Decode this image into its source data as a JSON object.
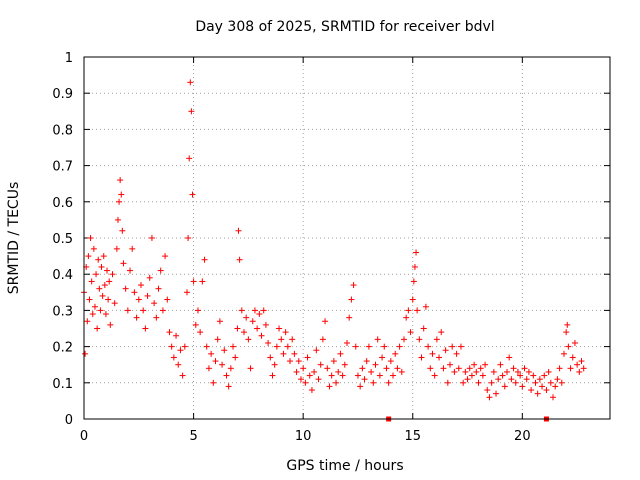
{
  "chart_data": {
    "type": "scatter",
    "title": "Day 308 of 2025, SRMTID for receiver bdvl",
    "xlabel": "GPS time / hours",
    "ylabel": "SRMTID / TECUs",
    "xlim": [
      0,
      24
    ],
    "ylim": [
      0,
      1
    ],
    "xticks": [
      0,
      5,
      10,
      15,
      20
    ],
    "yticks": [
      0,
      0.1,
      0.2,
      0.3,
      0.4,
      0.5,
      0.6,
      0.7,
      0.8,
      0.9,
      1
    ],
    "xtick_labels": [
      "0",
      "5",
      "10",
      "15",
      "20"
    ],
    "ytick_labels": [
      "0",
      "0.1",
      "0.2",
      "0.3",
      "0.4",
      "0.5",
      "0.6",
      "0.7",
      "0.8",
      "0.9",
      "1"
    ],
    "grid": true,
    "marker": "plus",
    "series": [
      {
        "name": "SRMTID",
        "color": "#ff0000",
        "points": [
          [
            0.0,
            0.35
          ],
          [
            0.05,
            0.18
          ],
          [
            0.1,
            0.42
          ],
          [
            0.15,
            0.27
          ],
          [
            0.2,
            0.45
          ],
          [
            0.25,
            0.33
          ],
          [
            0.3,
            0.5
          ],
          [
            0.35,
            0.38
          ],
          [
            0.4,
            0.29
          ],
          [
            0.45,
            0.47
          ],
          [
            0.5,
            0.31
          ],
          [
            0.55,
            0.4
          ],
          [
            0.6,
            0.25
          ],
          [
            0.65,
            0.44
          ],
          [
            0.7,
            0.36
          ],
          [
            0.75,
            0.3
          ],
          [
            0.8,
            0.42
          ],
          [
            0.85,
            0.34
          ],
          [
            0.9,
            0.45
          ],
          [
            0.95,
            0.37
          ],
          [
            1.0,
            0.29
          ],
          [
            1.05,
            0.41
          ],
          [
            1.1,
            0.33
          ],
          [
            1.15,
            0.38
          ],
          [
            1.2,
            0.26
          ],
          [
            1.3,
            0.4
          ],
          [
            1.4,
            0.32
          ],
          [
            1.5,
            0.47
          ],
          [
            1.55,
            0.55
          ],
          [
            1.6,
            0.6
          ],
          [
            1.65,
            0.66
          ],
          [
            1.7,
            0.62
          ],
          [
            1.75,
            0.52
          ],
          [
            1.8,
            0.43
          ],
          [
            1.9,
            0.36
          ],
          [
            2.0,
            0.3
          ],
          [
            2.1,
            0.41
          ],
          [
            2.2,
            0.47
          ],
          [
            2.3,
            0.35
          ],
          [
            2.4,
            0.28
          ],
          [
            2.5,
            0.33
          ],
          [
            2.6,
            0.37
          ],
          [
            2.7,
            0.3
          ],
          [
            2.8,
            0.25
          ],
          [
            2.9,
            0.34
          ],
          [
            3.0,
            0.39
          ],
          [
            3.1,
            0.5
          ],
          [
            3.2,
            0.32
          ],
          [
            3.3,
            0.28
          ],
          [
            3.4,
            0.36
          ],
          [
            3.5,
            0.41
          ],
          [
            3.6,
            0.3
          ],
          [
            3.7,
            0.45
          ],
          [
            3.8,
            0.33
          ],
          [
            3.9,
            0.24
          ],
          [
            4.0,
            0.2
          ],
          [
            4.1,
            0.17
          ],
          [
            4.2,
            0.23
          ],
          [
            4.3,
            0.15
          ],
          [
            4.4,
            0.19
          ],
          [
            4.5,
            0.12
          ],
          [
            4.6,
            0.2
          ],
          [
            4.7,
            0.35
          ],
          [
            4.75,
            0.5
          ],
          [
            4.8,
            0.72
          ],
          [
            4.85,
            0.93
          ],
          [
            4.9,
            0.85
          ],
          [
            4.95,
            0.62
          ],
          [
            5.0,
            0.38
          ],
          [
            5.1,
            0.26
          ],
          [
            5.2,
            0.3
          ],
          [
            5.3,
            0.24
          ],
          [
            5.4,
            0.38
          ],
          [
            5.5,
            0.44
          ],
          [
            5.6,
            0.2
          ],
          [
            5.7,
            0.14
          ],
          [
            5.8,
            0.18
          ],
          [
            5.9,
            0.1
          ],
          [
            6.0,
            0.16
          ],
          [
            6.1,
            0.22
          ],
          [
            6.2,
            0.27
          ],
          [
            6.3,
            0.15
          ],
          [
            6.4,
            0.19
          ],
          [
            6.5,
            0.12
          ],
          [
            6.6,
            0.09
          ],
          [
            6.7,
            0.14
          ],
          [
            6.8,
            0.2
          ],
          [
            6.9,
            0.17
          ],
          [
            7.0,
            0.25
          ],
          [
            7.05,
            0.52
          ],
          [
            7.1,
            0.44
          ],
          [
            7.2,
            0.3
          ],
          [
            7.3,
            0.24
          ],
          [
            7.4,
            0.28
          ],
          [
            7.5,
            0.22
          ],
          [
            7.6,
            0.14
          ],
          [
            7.7,
            0.27
          ],
          [
            7.8,
            0.3
          ],
          [
            7.9,
            0.25
          ],
          [
            8.0,
            0.29
          ],
          [
            8.1,
            0.23
          ],
          [
            8.2,
            0.3
          ],
          [
            8.3,
            0.26
          ],
          [
            8.4,
            0.21
          ],
          [
            8.5,
            0.17
          ],
          [
            8.6,
            0.12
          ],
          [
            8.7,
            0.15
          ],
          [
            8.8,
            0.2
          ],
          [
            8.9,
            0.25
          ],
          [
            9.0,
            0.22
          ],
          [
            9.1,
            0.18
          ],
          [
            9.2,
            0.24
          ],
          [
            9.3,
            0.2
          ],
          [
            9.4,
            0.16
          ],
          [
            9.5,
            0.22
          ],
          [
            9.6,
            0.18
          ],
          [
            9.7,
            0.13
          ],
          [
            9.8,
            0.16
          ],
          [
            9.9,
            0.11
          ],
          [
            10.0,
            0.14
          ],
          [
            10.1,
            0.1
          ],
          [
            10.2,
            0.17
          ],
          [
            10.3,
            0.12
          ],
          [
            10.4,
            0.08
          ],
          [
            10.5,
            0.13
          ],
          [
            10.6,
            0.19
          ],
          [
            10.7,
            0.11
          ],
          [
            10.8,
            0.15
          ],
          [
            10.9,
            0.22
          ],
          [
            11.0,
            0.27
          ],
          [
            11.1,
            0.14
          ],
          [
            11.2,
            0.09
          ],
          [
            11.3,
            0.12
          ],
          [
            11.4,
            0.16
          ],
          [
            11.5,
            0.1
          ],
          [
            11.6,
            0.13
          ],
          [
            11.7,
            0.18
          ],
          [
            11.8,
            0.12
          ],
          [
            11.9,
            0.15
          ],
          [
            12.0,
            0.21
          ],
          [
            12.1,
            0.28
          ],
          [
            12.2,
            0.33
          ],
          [
            12.3,
            0.37
          ],
          [
            12.4,
            0.2
          ],
          [
            12.5,
            0.12
          ],
          [
            12.6,
            0.09
          ],
          [
            12.7,
            0.14
          ],
          [
            12.8,
            0.11
          ],
          [
            12.9,
            0.16
          ],
          [
            13.0,
            0.2
          ],
          [
            13.1,
            0.13
          ],
          [
            13.2,
            0.1
          ],
          [
            13.3,
            0.15
          ],
          [
            13.4,
            0.22
          ],
          [
            13.5,
            0.12
          ],
          [
            13.6,
            0.17
          ],
          [
            13.7,
            0.2
          ],
          [
            13.8,
            0.14
          ],
          [
            13.9,
            0.1
          ],
          [
            14.0,
            0.16
          ],
          [
            14.1,
            0.12
          ],
          [
            14.2,
            0.18
          ],
          [
            14.3,
            0.14
          ],
          [
            14.4,
            0.2
          ],
          [
            14.5,
            0.13
          ],
          [
            14.6,
            0.22
          ],
          [
            14.7,
            0.28
          ],
          [
            14.8,
            0.3
          ],
          [
            14.9,
            0.24
          ],
          [
            15.0,
            0.33
          ],
          [
            15.05,
            0.38
          ],
          [
            15.1,
            0.42
          ],
          [
            15.15,
            0.46
          ],
          [
            15.2,
            0.3
          ],
          [
            15.3,
            0.22
          ],
          [
            15.4,
            0.17
          ],
          [
            15.5,
            0.25
          ],
          [
            15.6,
            0.31
          ],
          [
            15.7,
            0.2
          ],
          [
            15.8,
            0.14
          ],
          [
            15.9,
            0.18
          ],
          [
            16.0,
            0.12
          ],
          [
            16.1,
            0.22
          ],
          [
            16.2,
            0.17
          ],
          [
            16.3,
            0.24
          ],
          [
            16.4,
            0.14
          ],
          [
            16.5,
            0.19
          ],
          [
            16.6,
            0.1
          ],
          [
            16.7,
            0.15
          ],
          [
            16.8,
            0.2
          ],
          [
            16.9,
            0.13
          ],
          [
            17.0,
            0.18
          ],
          [
            17.1,
            0.14
          ],
          [
            17.2,
            0.2
          ],
          [
            17.3,
            0.1
          ],
          [
            17.4,
            0.13
          ],
          [
            17.5,
            0.11
          ],
          [
            17.6,
            0.14
          ],
          [
            17.7,
            0.12
          ],
          [
            17.8,
            0.15
          ],
          [
            17.9,
            0.13
          ],
          [
            18.0,
            0.1
          ],
          [
            18.1,
            0.14
          ],
          [
            18.2,
            0.12
          ],
          [
            18.3,
            0.15
          ],
          [
            18.4,
            0.08
          ],
          [
            18.5,
            0.06
          ],
          [
            18.6,
            0.1
          ],
          [
            18.7,
            0.13
          ],
          [
            18.8,
            0.07
          ],
          [
            18.9,
            0.11
          ],
          [
            19.0,
            0.15
          ],
          [
            19.1,
            0.12
          ],
          [
            19.2,
            0.09
          ],
          [
            19.3,
            0.13
          ],
          [
            19.4,
            0.17
          ],
          [
            19.5,
            0.11
          ],
          [
            19.6,
            0.14
          ],
          [
            19.7,
            0.1
          ],
          [
            19.8,
            0.13
          ],
          [
            19.9,
            0.12
          ],
          [
            20.0,
            0.09
          ],
          [
            20.1,
            0.14
          ],
          [
            20.2,
            0.11
          ],
          [
            20.3,
            0.13
          ],
          [
            20.4,
            0.08
          ],
          [
            20.5,
            0.12
          ],
          [
            20.6,
            0.1
          ],
          [
            20.7,
            0.07
          ],
          [
            20.8,
            0.11
          ],
          [
            20.9,
            0.09
          ],
          [
            21.0,
            0.12
          ],
          [
            21.1,
            0.08
          ],
          [
            21.2,
            0.13
          ],
          [
            21.3,
            0.1
          ],
          [
            21.4,
            0.06
          ],
          [
            21.5,
            0.09
          ],
          [
            21.6,
            0.11
          ],
          [
            21.7,
            0.14
          ],
          [
            21.8,
            0.1
          ],
          [
            21.9,
            0.18
          ],
          [
            22.0,
            0.24
          ],
          [
            22.05,
            0.26
          ],
          [
            22.1,
            0.2
          ],
          [
            22.2,
            0.14
          ],
          [
            22.3,
            0.17
          ],
          [
            22.4,
            0.21
          ],
          [
            22.5,
            0.15
          ],
          [
            22.6,
            0.13
          ],
          [
            22.7,
            0.16
          ],
          [
            22.8,
            0.14
          ]
        ]
      }
    ],
    "gap_markers": [
      {
        "x": 13.9,
        "y": 0.0
      },
      {
        "x": 21.1,
        "y": 0.0
      }
    ]
  }
}
